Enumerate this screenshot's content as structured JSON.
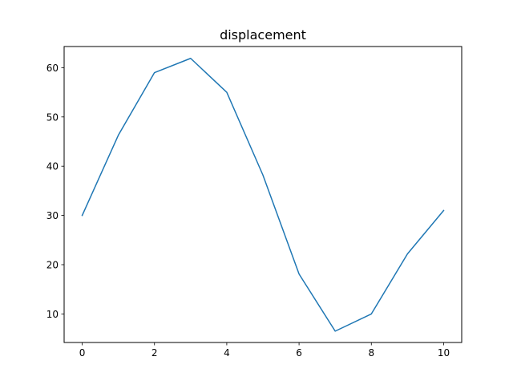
{
  "chart_data": {
    "type": "line",
    "title": "displacement",
    "xlabel": "",
    "ylabel": "",
    "x": [
      0,
      1,
      2,
      3,
      4,
      5,
      6,
      7,
      8,
      9,
      10
    ],
    "series": [
      {
        "values": [
          30.0,
          46.3,
          59.0,
          61.9,
          55.0,
          38.2,
          18.1,
          6.5,
          10.0,
          22.2,
          31.0
        ],
        "color": "#1f77b4"
      }
    ],
    "xlim": [
      -0.5,
      10.5
    ],
    "ylim": [
      4.2,
      64.3
    ],
    "xticks": [
      0,
      2,
      4,
      6,
      8,
      10
    ],
    "yticks": [
      10,
      20,
      30,
      40,
      50,
      60
    ],
    "xtick_labels": [
      "0",
      "2",
      "4",
      "6",
      "8",
      "10"
    ],
    "ytick_labels": [
      "10",
      "20",
      "30",
      "40",
      "50",
      "60"
    ],
    "grid": false,
    "legend": "none"
  }
}
